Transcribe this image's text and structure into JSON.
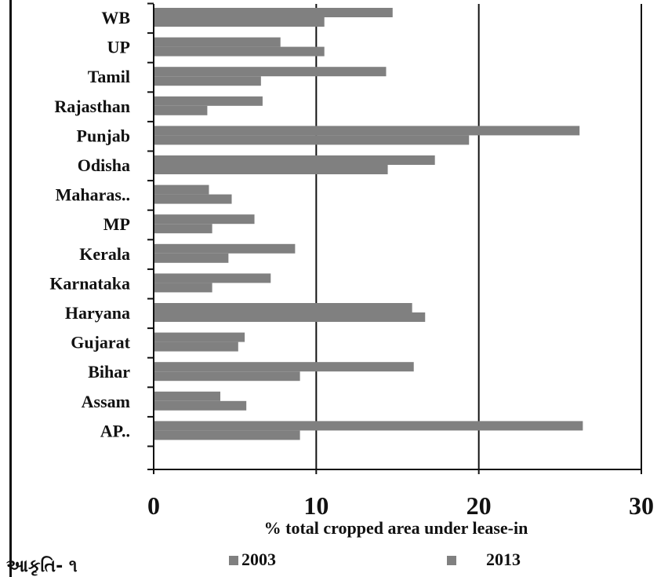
{
  "chart_data": {
    "type": "bar",
    "orientation": "horizontal",
    "categories": [
      "WB",
      "UP",
      "Tamil",
      "Rajasthan",
      "Punjab",
      "Odisha",
      "Maharas..",
      "MP",
      "Kerala",
      "Karnataka",
      "Haryana",
      "Gujarat",
      "Bihar",
      "Assam",
      "AP.."
    ],
    "series": [
      {
        "name": "2003",
        "values": [
          14.7,
          7.8,
          14.3,
          6.7,
          26.2,
          17.3,
          3.4,
          6.2,
          8.7,
          7.2,
          15.9,
          5.6,
          16.0,
          4.1,
          26.4
        ],
        "color": "#808080"
      },
      {
        "name": "2013",
        "values": [
          10.5,
          10.5,
          6.6,
          3.3,
          19.4,
          14.4,
          4.8,
          3.6,
          4.6,
          3.6,
          16.7,
          5.2,
          9.0,
          5.7,
          9.0
        ],
        "color": "#808080"
      }
    ],
    "xlim": [
      0,
      30
    ],
    "xticks": [
      "0",
      "10",
      "20",
      "30"
    ],
    "xlabel": "% total cropped area under lease-in",
    "ylabel": "",
    "title": "",
    "grid": "vertical",
    "legend": {
      "placement": "bottom"
    }
  },
  "figure_caption": "આકૃતિ- ૧"
}
